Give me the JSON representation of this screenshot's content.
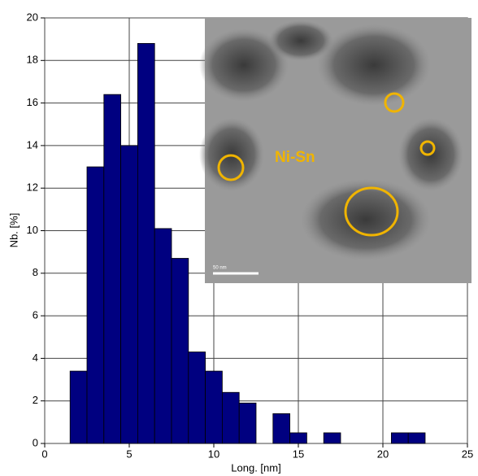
{
  "chart_data": {
    "type": "histogram",
    "bins": [
      1.5,
      2.5,
      3.5,
      4.5,
      5.5,
      6.5,
      7.5,
      8.5,
      9.5,
      10.5,
      11.5,
      12.5,
      13.5,
      14.5,
      15.5,
      16.5,
      17.5,
      18.5,
      19.5,
      20.5,
      21.5,
      22.5
    ],
    "values": [
      3.4,
      13.0,
      16.4,
      14.0,
      18.8,
      10.1,
      8.7,
      4.3,
      3.4,
      2.4,
      1.9,
      0,
      1.4,
      0.5,
      0,
      0.5,
      0,
      0,
      0,
      0.5,
      0.5
    ],
    "color": "#000080",
    "xlabel": "Long. [nm]",
    "ylabel": "Nb. [%]",
    "xlim": [
      0,
      25
    ],
    "ylim": [
      0,
      20
    ],
    "xticks": [
      0,
      5,
      10,
      15,
      20,
      25
    ],
    "yticks": [
      0,
      2,
      4,
      6,
      8,
      10,
      12,
      14,
      16,
      18,
      20
    ],
    "grid": true,
    "inset": {
      "label": "Ni-Sn",
      "scale_bar": "50 nm"
    }
  }
}
